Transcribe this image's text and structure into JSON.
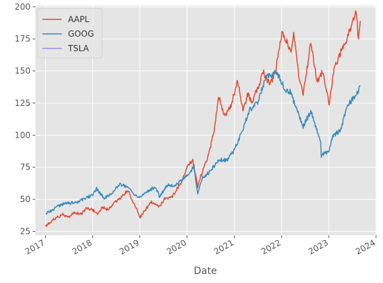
{
  "chart_data": {
    "type": "line",
    "xlabel": "Date",
    "ylabel": "",
    "ylim": [
      22,
      201
    ],
    "xlim": [
      "2016-10-15",
      "2024-01-01"
    ],
    "x_ticks": [
      "2017",
      "2018",
      "2019",
      "2020",
      "2021",
      "2022",
      "2023",
      "2024"
    ],
    "y_ticks": [
      25,
      50,
      75,
      100,
      125,
      150,
      175,
      200
    ],
    "grid": true,
    "legend_position": "top-left",
    "style": "ggplot",
    "series": [
      {
        "name": "AAPL",
        "color": "#e24a33",
        "x": [
          "2017-01-03",
          "2017-02-15",
          "2017-03-31",
          "2017-05-15",
          "2017-06-30",
          "2017-08-15",
          "2017-09-30",
          "2017-11-15",
          "2017-12-29",
          "2018-02-08",
          "2018-03-15",
          "2018-05-01",
          "2018-06-15",
          "2018-08-01",
          "2018-10-01",
          "2018-11-15",
          "2019-01-03",
          "2019-02-15",
          "2019-04-01",
          "2019-05-31",
          "2019-07-15",
          "2019-08-31",
          "2019-10-15",
          "2019-12-01",
          "2020-01-15",
          "2020-02-15",
          "2020-03-23",
          "2020-04-30",
          "2020-06-15",
          "2020-07-31",
          "2020-09-01",
          "2020-10-15",
          "2020-12-01",
          "2021-01-26",
          "2021-03-08",
          "2021-04-15",
          "2021-05-15",
          "2021-06-30",
          "2021-08-15",
          "2021-10-04",
          "2021-11-15",
          "2022-01-03",
          "2022-02-15",
          "2022-03-15",
          "2022-04-05",
          "2022-05-15",
          "2022-06-16",
          "2022-08-15",
          "2022-09-30",
          "2022-11-15",
          "2023-01-03",
          "2023-02-15",
          "2023-03-31",
          "2023-05-15",
          "2023-06-15",
          "2023-07-31",
          "2023-08-18",
          "2023-09-01"
        ],
        "values": [
          29,
          33,
          36,
          38,
          36,
          40,
          38,
          43,
          42,
          39,
          44,
          42,
          47,
          51,
          57,
          47,
          36,
          42,
          48,
          44,
          51,
          51,
          58,
          66,
          78,
          80,
          60,
          72,
          84,
          106,
          131,
          115,
          122,
          142,
          120,
          132,
          125,
          137,
          149,
          139,
          150,
          180,
          172,
          163,
          178,
          145,
          131,
          172,
          142,
          150,
          125,
          153,
          164,
          172,
          183,
          196,
          174,
          189
        ]
      },
      {
        "name": "GOOG",
        "color": "#348abd",
        "x": [
          "2017-01-03",
          "2017-03-01",
          "2017-05-01",
          "2017-06-30",
          "2017-08-31",
          "2017-10-31",
          "2017-12-29",
          "2018-02-01",
          "2018-03-31",
          "2018-05-31",
          "2018-07-31",
          "2018-09-30",
          "2018-11-30",
          "2018-12-24",
          "2019-02-28",
          "2019-04-30",
          "2019-06-03",
          "2019-07-31",
          "2019-09-30",
          "2019-11-30",
          "2020-01-31",
          "2020-02-19",
          "2020-03-23",
          "2020-04-30",
          "2020-06-30",
          "2020-08-31",
          "2020-10-31",
          "2020-12-31",
          "2021-02-28",
          "2021-04-30",
          "2021-06-30",
          "2021-08-31",
          "2021-10-31",
          "2021-11-19",
          "2022-01-31",
          "2022-03-08",
          "2022-04-30",
          "2022-06-16",
          "2022-08-15",
          "2022-10-31",
          "2022-11-03",
          "2022-12-31",
          "2023-01-31",
          "2023-03-31",
          "2023-05-31",
          "2023-07-31",
          "2023-09-01"
        ],
        "values": [
          39,
          42,
          46,
          47,
          47,
          51,
          53,
          58,
          51,
          55,
          62,
          59,
          53,
          51,
          56,
          60,
          52,
          61,
          61,
          65,
          72,
          76,
          55,
          67,
          72,
          81,
          80,
          88,
          103,
          120,
          125,
          145,
          147,
          150,
          135,
          134,
          120,
          107,
          119,
          94,
          84,
          88,
          99,
          104,
          124,
          131,
          138
        ]
      },
      {
        "name": "TSLA",
        "color": "#988ed5",
        "x": [],
        "values": []
      }
    ]
  }
}
